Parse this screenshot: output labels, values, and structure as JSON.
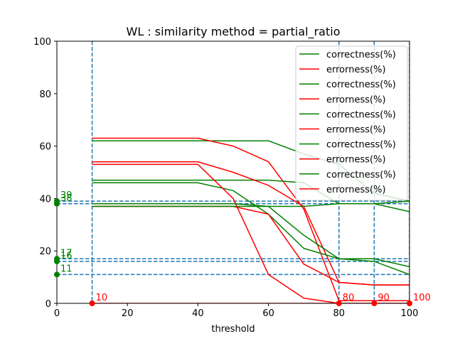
{
  "chart_data": {
    "type": "line",
    "title": "WL : similarity method = partial_ratio",
    "xlabel": "threshold",
    "ylabel": "",
    "xlim": [
      0,
      100
    ],
    "ylim": [
      0,
      100
    ],
    "xticks": [
      0,
      20,
      40,
      60,
      80,
      100
    ],
    "yticks": [
      0,
      20,
      40,
      60,
      80,
      100
    ],
    "grid": false,
    "legend": "top-right",
    "colors": {
      "correctness": "#008000",
      "errorness": "#ff0000",
      "guide": "#1f77b4"
    },
    "x": [
      10,
      20,
      30,
      40,
      50,
      60,
      70,
      80,
      90,
      100
    ],
    "series": [
      {
        "name": "correctness(%)",
        "kind": "correctness",
        "values": [
          62,
          62,
          62,
          62,
          62,
          62,
          57,
          53,
          42,
          39
        ]
      },
      {
        "name": "errorness(%)",
        "kind": "errorness",
        "values": [
          63,
          63,
          63,
          63,
          60,
          54,
          36,
          1,
          1,
          1
        ]
      },
      {
        "name": "correctness(%)",
        "kind": "correctness",
        "values": [
          47,
          47,
          47,
          47,
          47,
          47,
          46,
          38,
          38,
          35
        ]
      },
      {
        "name": "errorness(%)",
        "kind": "errorness",
        "values": [
          54,
          54,
          54,
          54,
          50,
          45,
          37,
          8,
          7,
          7
        ]
      },
      {
        "name": "correctness(%)",
        "kind": "correctness",
        "values": [
          46,
          46,
          46,
          46,
          43,
          34,
          21,
          17,
          17,
          14
        ]
      },
      {
        "name": "errorness(%)",
        "kind": "errorness",
        "values": [
          53,
          53,
          53,
          53,
          40,
          11,
          2,
          0,
          0,
          0
        ]
      },
      {
        "name": "correctness(%)",
        "kind": "correctness",
        "values": [
          38,
          38,
          38,
          38,
          38,
          37,
          26,
          17,
          16,
          11
        ]
      },
      {
        "name": "errorness(%)",
        "kind": "errorness",
        "values": [
          37,
          37,
          37,
          37,
          37,
          34,
          15,
          8,
          7,
          7
        ]
      },
      {
        "name": "correctness(%)",
        "kind": "correctness",
        "values": [
          37,
          37,
          37,
          37,
          37,
          37,
          37,
          38,
          38,
          39
        ]
      },
      {
        "name": "errorness(%)",
        "kind": "errorness",
        "values": [
          0,
          0,
          0,
          0,
          0,
          0,
          0,
          0,
          0,
          0
        ]
      }
    ],
    "vlines": [
      10,
      80,
      90,
      100
    ],
    "hlines": [
      39,
      38,
      17,
      16,
      11
    ],
    "annotations": [
      {
        "text": "39",
        "x": 0,
        "y": 39,
        "kind": "correctness"
      },
      {
        "text": "38",
        "x": 0,
        "y": 38,
        "kind": "correctness"
      },
      {
        "text": "17",
        "x": 0,
        "y": 17,
        "kind": "correctness"
      },
      {
        "text": "16",
        "x": 0,
        "y": 16,
        "kind": "correctness"
      },
      {
        "text": "11",
        "x": 0,
        "y": 11,
        "kind": "correctness"
      },
      {
        "text": "10",
        "x": 10,
        "y": 0,
        "kind": "errorness"
      },
      {
        "text": "80",
        "x": 80,
        "y": 0,
        "kind": "errorness"
      },
      {
        "text": "90",
        "x": 90,
        "y": 0,
        "kind": "errorness"
      },
      {
        "text": "100",
        "x": 100,
        "y": 0,
        "kind": "errorness"
      }
    ]
  }
}
